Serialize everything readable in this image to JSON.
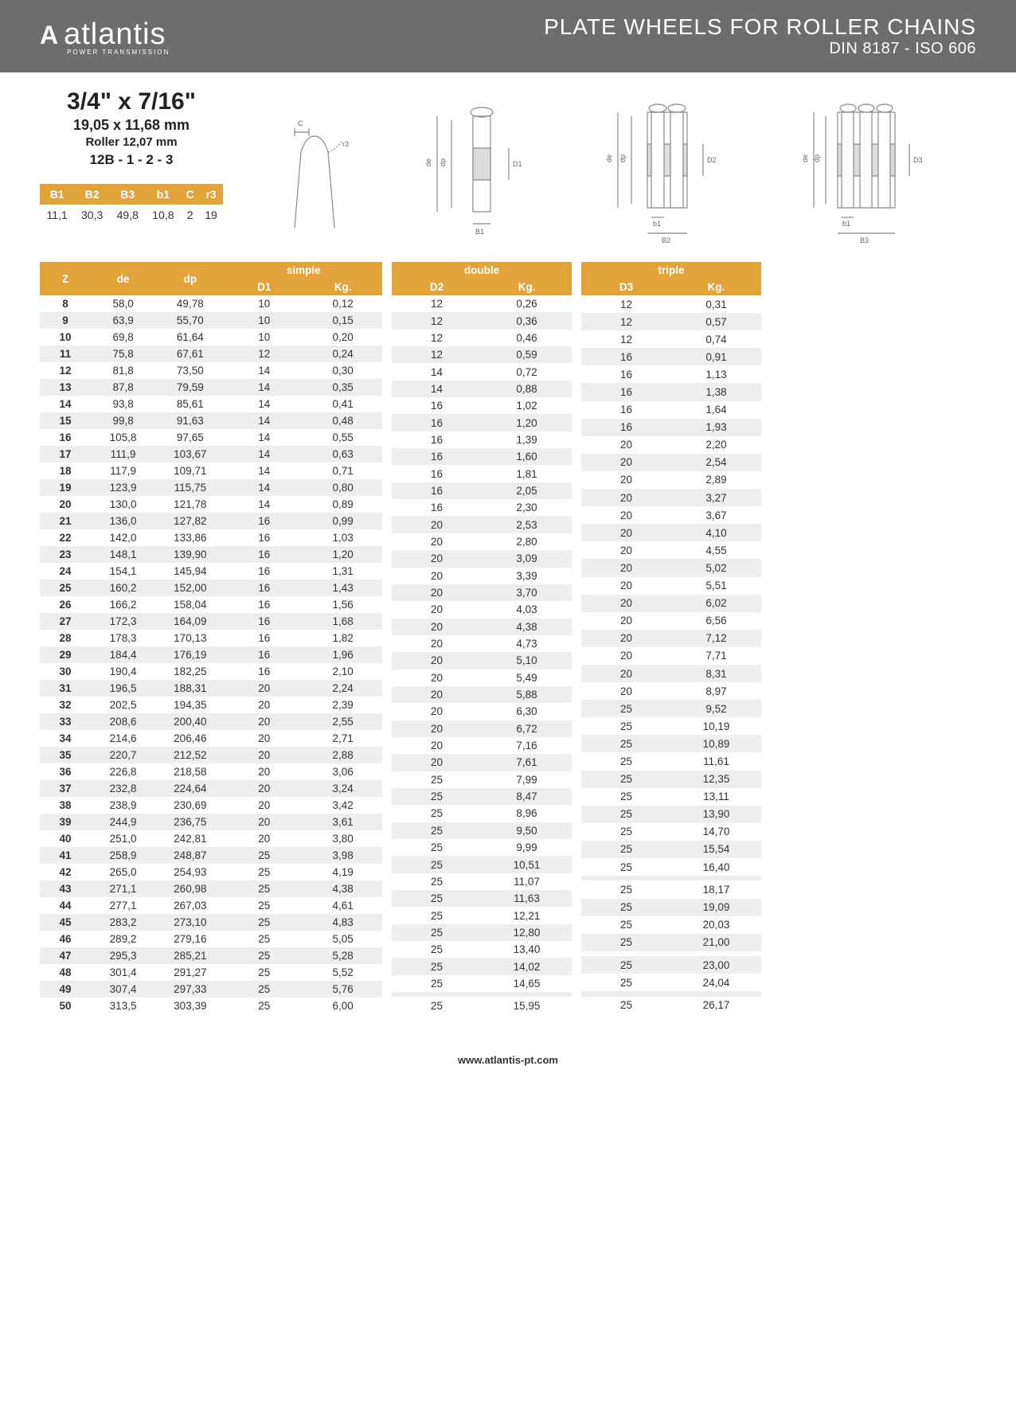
{
  "header": {
    "logo_mark": "A",
    "logo_text": "atlantis",
    "logo_sub": "POWER TRANSMISSION",
    "title_line1": "PLATE WHEELS FOR ROLLER CHAINS",
    "title_line2": "DIN 8187 - ISO 606"
  },
  "spec": {
    "size_inch": "3/4\" x 7/16\"",
    "size_mm": "19,05 x 11,68 mm",
    "roller": "Roller 12,07 mm",
    "code": "12B - 1 - 2 - 3"
  },
  "mini_table": {
    "headers": [
      "B1",
      "B2",
      "B3",
      "b1",
      "C",
      "r3"
    ],
    "values": [
      "11,1",
      "30,3",
      "49,8",
      "10,8",
      "2",
      "19"
    ]
  },
  "diagram_labels": {
    "c": "C",
    "r3": "r3",
    "de": "de",
    "dp": "dp",
    "d1": "D1",
    "d2": "D2",
    "d3": "D3",
    "b1_small": "b1",
    "B1": "B1",
    "B2": "B2",
    "B3": "B3"
  },
  "main_table": {
    "left_headers": {
      "z": "Z",
      "de": "de",
      "dp": "dp"
    },
    "categories": [
      {
        "name": "simple",
        "d_col": "D1",
        "kg_col": "Kg."
      },
      {
        "name": "double",
        "d_col": "D2",
        "kg_col": "Kg."
      },
      {
        "name": "triple",
        "d_col": "D3",
        "kg_col": "Kg."
      }
    ],
    "rows": [
      {
        "z": "8",
        "de": "58,0",
        "dp": "49,78",
        "simple": {
          "d": "10",
          "kg": "0,12"
        },
        "double": {
          "d": "12",
          "kg": "0,26"
        },
        "triple": {
          "d": "12",
          "kg": "0,31"
        }
      },
      {
        "z": "9",
        "de": "63,9",
        "dp": "55,70",
        "simple": {
          "d": "10",
          "kg": "0,15"
        },
        "double": {
          "d": "12",
          "kg": "0,36"
        },
        "triple": {
          "d": "12",
          "kg": "0,57"
        }
      },
      {
        "z": "10",
        "de": "69,8",
        "dp": "61,64",
        "simple": {
          "d": "10",
          "kg": "0,20"
        },
        "double": {
          "d": "12",
          "kg": "0,46"
        },
        "triple": {
          "d": "12",
          "kg": "0,74"
        }
      },
      {
        "z": "11",
        "de": "75,8",
        "dp": "67,61",
        "simple": {
          "d": "12",
          "kg": "0,24"
        },
        "double": {
          "d": "12",
          "kg": "0,59"
        },
        "triple": {
          "d": "16",
          "kg": "0,91"
        }
      },
      {
        "z": "12",
        "de": "81,8",
        "dp": "73,50",
        "simple": {
          "d": "14",
          "kg": "0,30"
        },
        "double": {
          "d": "14",
          "kg": "0,72"
        },
        "triple": {
          "d": "16",
          "kg": "1,13"
        }
      },
      {
        "z": "13",
        "de": "87,8",
        "dp": "79,59",
        "simple": {
          "d": "14",
          "kg": "0,35"
        },
        "double": {
          "d": "14",
          "kg": "0,88"
        },
        "triple": {
          "d": "16",
          "kg": "1,38"
        }
      },
      {
        "z": "14",
        "de": "93,8",
        "dp": "85,61",
        "simple": {
          "d": "14",
          "kg": "0,41"
        },
        "double": {
          "d": "16",
          "kg": "1,02"
        },
        "triple": {
          "d": "16",
          "kg": "1,64"
        }
      },
      {
        "z": "15",
        "de": "99,8",
        "dp": "91,63",
        "simple": {
          "d": "14",
          "kg": "0,48"
        },
        "double": {
          "d": "16",
          "kg": "1,20"
        },
        "triple": {
          "d": "16",
          "kg": "1,93"
        }
      },
      {
        "z": "16",
        "de": "105,8",
        "dp": "97,65",
        "simple": {
          "d": "14",
          "kg": "0,55"
        },
        "double": {
          "d": "16",
          "kg": "1,39"
        },
        "triple": {
          "d": "20",
          "kg": "2,20"
        }
      },
      {
        "z": "17",
        "de": "111,9",
        "dp": "103,67",
        "simple": {
          "d": "14",
          "kg": "0,63"
        },
        "double": {
          "d": "16",
          "kg": "1,60"
        },
        "triple": {
          "d": "20",
          "kg": "2,54"
        }
      },
      {
        "z": "18",
        "de": "117,9",
        "dp": "109,71",
        "simple": {
          "d": "14",
          "kg": "0,71"
        },
        "double": {
          "d": "16",
          "kg": "1,81"
        },
        "triple": {
          "d": "20",
          "kg": "2,89"
        }
      },
      {
        "z": "19",
        "de": "123,9",
        "dp": "115,75",
        "simple": {
          "d": "14",
          "kg": "0,80"
        },
        "double": {
          "d": "16",
          "kg": "2,05"
        },
        "triple": {
          "d": "20",
          "kg": "3,27"
        }
      },
      {
        "z": "20",
        "de": "130,0",
        "dp": "121,78",
        "simple": {
          "d": "14",
          "kg": "0,89"
        },
        "double": {
          "d": "16",
          "kg": "2,30"
        },
        "triple": {
          "d": "20",
          "kg": "3,67"
        }
      },
      {
        "z": "21",
        "de": "136,0",
        "dp": "127,82",
        "simple": {
          "d": "16",
          "kg": "0,99"
        },
        "double": {
          "d": "20",
          "kg": "2,53"
        },
        "triple": {
          "d": "20",
          "kg": "4,10"
        }
      },
      {
        "z": "22",
        "de": "142,0",
        "dp": "133,86",
        "simple": {
          "d": "16",
          "kg": "1,03"
        },
        "double": {
          "d": "20",
          "kg": "2,80"
        },
        "triple": {
          "d": "20",
          "kg": "4,55"
        }
      },
      {
        "z": "23",
        "de": "148,1",
        "dp": "139,90",
        "simple": {
          "d": "16",
          "kg": "1,20"
        },
        "double": {
          "d": "20",
          "kg": "3,09"
        },
        "triple": {
          "d": "20",
          "kg": "5,02"
        }
      },
      {
        "z": "24",
        "de": "154,1",
        "dp": "145,94",
        "simple": {
          "d": "16",
          "kg": "1,31"
        },
        "double": {
          "d": "20",
          "kg": "3,39"
        },
        "triple": {
          "d": "20",
          "kg": "5,51"
        }
      },
      {
        "z": "25",
        "de": "160,2",
        "dp": "152,00",
        "simple": {
          "d": "16",
          "kg": "1,43"
        },
        "double": {
          "d": "20",
          "kg": "3,70"
        },
        "triple": {
          "d": "20",
          "kg": "6,02"
        }
      },
      {
        "z": "26",
        "de": "166,2",
        "dp": "158,04",
        "simple": {
          "d": "16",
          "kg": "1,56"
        },
        "double": {
          "d": "20",
          "kg": "4,03"
        },
        "triple": {
          "d": "20",
          "kg": "6,56"
        }
      },
      {
        "z": "27",
        "de": "172,3",
        "dp": "164,09",
        "simple": {
          "d": "16",
          "kg": "1,68"
        },
        "double": {
          "d": "20",
          "kg": "4,38"
        },
        "triple": {
          "d": "20",
          "kg": "7,12"
        }
      },
      {
        "z": "28",
        "de": "178,3",
        "dp": "170,13",
        "simple": {
          "d": "16",
          "kg": "1,82"
        },
        "double": {
          "d": "20",
          "kg": "4,73"
        },
        "triple": {
          "d": "20",
          "kg": "7,71"
        }
      },
      {
        "z": "29",
        "de": "184,4",
        "dp": "176,19",
        "simple": {
          "d": "16",
          "kg": "1,96"
        },
        "double": {
          "d": "20",
          "kg": "5,10"
        },
        "triple": {
          "d": "20",
          "kg": "8,31"
        }
      },
      {
        "z": "30",
        "de": "190,4",
        "dp": "182,25",
        "simple": {
          "d": "16",
          "kg": "2,10"
        },
        "double": {
          "d": "20",
          "kg": "5,49"
        },
        "triple": {
          "d": "20",
          "kg": "8,97"
        }
      },
      {
        "z": "31",
        "de": "196,5",
        "dp": "188,31",
        "simple": {
          "d": "20",
          "kg": "2,24"
        },
        "double": {
          "d": "20",
          "kg": "5,88"
        },
        "triple": {
          "d": "25",
          "kg": "9,52"
        }
      },
      {
        "z": "32",
        "de": "202,5",
        "dp": "194,35",
        "simple": {
          "d": "20",
          "kg": "2,39"
        },
        "double": {
          "d": "20",
          "kg": "6,30"
        },
        "triple": {
          "d": "25",
          "kg": "10,19"
        }
      },
      {
        "z": "33",
        "de": "208,6",
        "dp": "200,40",
        "simple": {
          "d": "20",
          "kg": "2,55"
        },
        "double": {
          "d": "20",
          "kg": "6,72"
        },
        "triple": {
          "d": "25",
          "kg": "10,89"
        }
      },
      {
        "z": "34",
        "de": "214,6",
        "dp": "206,46",
        "simple": {
          "d": "20",
          "kg": "2,71"
        },
        "double": {
          "d": "20",
          "kg": "7,16"
        },
        "triple": {
          "d": "25",
          "kg": "11,61"
        }
      },
      {
        "z": "35",
        "de": "220,7",
        "dp": "212,52",
        "simple": {
          "d": "20",
          "kg": "2,88"
        },
        "double": {
          "d": "20",
          "kg": "7,61"
        },
        "triple": {
          "d": "25",
          "kg": "12,35"
        }
      },
      {
        "z": "36",
        "de": "226,8",
        "dp": "218,58",
        "simple": {
          "d": "20",
          "kg": "3,06"
        },
        "double": {
          "d": "25",
          "kg": "7,99"
        },
        "triple": {
          "d": "25",
          "kg": "13,11"
        }
      },
      {
        "z": "37",
        "de": "232,8",
        "dp": "224,64",
        "simple": {
          "d": "20",
          "kg": "3,24"
        },
        "double": {
          "d": "25",
          "kg": "8,47"
        },
        "triple": {
          "d": "25",
          "kg": "13,90"
        }
      },
      {
        "z": "38",
        "de": "238,9",
        "dp": "230,69",
        "simple": {
          "d": "20",
          "kg": "3,42"
        },
        "double": {
          "d": "25",
          "kg": "8,96"
        },
        "triple": {
          "d": "25",
          "kg": "14,70"
        }
      },
      {
        "z": "39",
        "de": "244,9",
        "dp": "236,75",
        "simple": {
          "d": "20",
          "kg": "3,61"
        },
        "double": {
          "d": "25",
          "kg": "9,50"
        },
        "triple": {
          "d": "25",
          "kg": "15,54"
        }
      },
      {
        "z": "40",
        "de": "251,0",
        "dp": "242,81",
        "simple": {
          "d": "20",
          "kg": "3,80"
        },
        "double": {
          "d": "25",
          "kg": "9,99"
        },
        "triple": {
          "d": "25",
          "kg": "16,40"
        }
      },
      {
        "z": "41",
        "de": "258,9",
        "dp": "248,87",
        "simple": {
          "d": "25",
          "kg": "3,98"
        },
        "double": {
          "d": "25",
          "kg": "10,51"
        },
        "triple": {
          "d": "",
          "kg": ""
        }
      },
      {
        "z": "42",
        "de": "265,0",
        "dp": "254,93",
        "simple": {
          "d": "25",
          "kg": "4,19"
        },
        "double": {
          "d": "25",
          "kg": "11,07"
        },
        "triple": {
          "d": "25",
          "kg": "18,17"
        }
      },
      {
        "z": "43",
        "de": "271,1",
        "dp": "260,98",
        "simple": {
          "d": "25",
          "kg": "4,38"
        },
        "double": {
          "d": "25",
          "kg": "11,63"
        },
        "triple": {
          "d": "25",
          "kg": "19,09"
        }
      },
      {
        "z": "44",
        "de": "277,1",
        "dp": "267,03",
        "simple": {
          "d": "25",
          "kg": "4,61"
        },
        "double": {
          "d": "25",
          "kg": "12,21"
        },
        "triple": {
          "d": "25",
          "kg": "20,03"
        }
      },
      {
        "z": "45",
        "de": "283,2",
        "dp": "273,10",
        "simple": {
          "d": "25",
          "kg": "4,83"
        },
        "double": {
          "d": "25",
          "kg": "12,80"
        },
        "triple": {
          "d": "25",
          "kg": "21,00"
        }
      },
      {
        "z": "46",
        "de": "289,2",
        "dp": "279,16",
        "simple": {
          "d": "25",
          "kg": "5,05"
        },
        "double": {
          "d": "25",
          "kg": "13,40"
        },
        "triple": {
          "d": "",
          "kg": ""
        }
      },
      {
        "z": "47",
        "de": "295,3",
        "dp": "285,21",
        "simple": {
          "d": "25",
          "kg": "5,28"
        },
        "double": {
          "d": "25",
          "kg": "14,02"
        },
        "triple": {
          "d": "25",
          "kg": "23,00"
        }
      },
      {
        "z": "48",
        "de": "301,4",
        "dp": "291,27",
        "simple": {
          "d": "25",
          "kg": "5,52"
        },
        "double": {
          "d": "25",
          "kg": "14,65"
        },
        "triple": {
          "d": "25",
          "kg": "24,04"
        }
      },
      {
        "z": "49",
        "de": "307,4",
        "dp": "297,33",
        "simple": {
          "d": "25",
          "kg": "5,76"
        },
        "double": {
          "d": "",
          "kg": ""
        },
        "triple": {
          "d": "",
          "kg": ""
        }
      },
      {
        "z": "50",
        "de": "313,5",
        "dp": "303,39",
        "simple": {
          "d": "25",
          "kg": "6,00"
        },
        "double": {
          "d": "25",
          "kg": "15,95"
        },
        "triple": {
          "d": "25",
          "kg": "26,17"
        }
      }
    ]
  },
  "footer": {
    "url": "www.atlantis-pt.com"
  },
  "colors": {
    "header_bg": "#6d6d6d",
    "accent": "#e1a33a",
    "row_stripe": "#eeeeee",
    "text": "#333333",
    "white": "#ffffff"
  }
}
